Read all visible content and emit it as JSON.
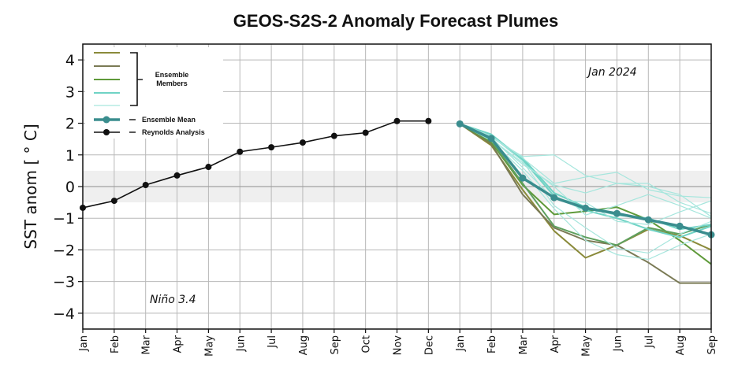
{
  "chart_data": {
    "type": "line",
    "title": "GEOS-S2S-2 Anomaly Forecast Plumes",
    "ylabel": "SST anom [ ° C]",
    "xlabel": "",
    "ylim": [
      -4.5,
      4.5
    ],
    "yticks": [
      "4",
      "3",
      "2",
      "1",
      "0",
      "−1",
      "−2",
      "−3",
      "−4"
    ],
    "ytick_values": [
      4,
      3,
      2,
      1,
      0,
      -1,
      -2,
      -3,
      -4
    ],
    "x_labels": [
      "Jan",
      "Feb",
      "Mar",
      "Apr",
      "May",
      "Jun",
      "Jul",
      "Aug",
      "Sep",
      "Oct",
      "Nov",
      "Dec",
      "Jan",
      "Feb",
      "Mar",
      "Apr",
      "May",
      "Jun",
      "Jul",
      "Aug",
      "Sep"
    ],
    "grid": true,
    "neutral_band": [
      -0.5,
      0.5
    ],
    "annotations": {
      "date": "Jan 2024",
      "region": "Niño 3.4"
    },
    "legend": {
      "position": "top-left",
      "members_label_line1": "Ensemble",
      "members_label_line2": "Members",
      "mean_label": "Ensemble Mean",
      "analysis_label": "Reynolds Analysis"
    },
    "reynolds_analysis": {
      "x_index": [
        0,
        1,
        2,
        3,
        4,
        5,
        6,
        7,
        8,
        9,
        10,
        11
      ],
      "values": [
        -0.67,
        -0.45,
        0.05,
        0.35,
        0.62,
        1.1,
        1.24,
        1.39,
        1.6,
        1.7,
        2.07,
        2.07
      ],
      "color": "#111111"
    },
    "ensemble_mean": {
      "x_index": [
        12,
        13,
        14,
        15,
        16,
        17,
        18,
        19,
        20
      ],
      "values": [
        1.98,
        1.52,
        0.27,
        -0.35,
        -0.68,
        -0.85,
        -1.05,
        -1.25,
        -1.52
      ],
      "color": "#3a8d8e"
    },
    "ensemble_members": [
      {
        "color": "#8a8a3a",
        "width": 2,
        "values": [
          1.98,
          1.3,
          -0.1,
          -1.4,
          -2.25,
          -1.85,
          -1.35,
          -1.55,
          -2.0
        ]
      },
      {
        "color": "#7a7a55",
        "width": 2,
        "values": [
          1.98,
          1.35,
          -0.25,
          -1.3,
          -1.7,
          -1.85,
          -2.4,
          -3.05,
          -3.05
        ]
      },
      {
        "color": "#5f9a3a",
        "width": 2,
        "values": [
          1.98,
          1.4,
          0.05,
          -0.88,
          -0.78,
          -0.65,
          -1.05,
          -1.7,
          -2.45
        ]
      },
      {
        "color": "#5fa05f",
        "width": 2,
        "values": [
          1.98,
          1.45,
          0.1,
          -1.25,
          -1.6,
          -1.85,
          -1.3,
          -1.5,
          -1.2
        ]
      },
      {
        "color": "#6fd3c5",
        "width": 2,
        "values": [
          1.98,
          1.6,
          0.9,
          -0.2,
          -0.65,
          -0.9,
          -1.0,
          -1.35,
          -1.2
        ]
      },
      {
        "color": "#6fd3c5",
        "width": 2,
        "values": [
          1.98,
          1.65,
          0.85,
          -0.3,
          -0.75,
          -1.0,
          -1.35,
          -1.6,
          -1.25
        ]
      },
      {
        "color": "#a6e6dd",
        "width": 1.2,
        "values": [
          1.98,
          1.55,
          0.95,
          1.0,
          0.35,
          0.1,
          0.0,
          -0.25,
          -0.95
        ]
      },
      {
        "color": "#a6e6dd",
        "width": 1.2,
        "values": [
          1.98,
          1.6,
          0.9,
          0.1,
          0.3,
          0.45,
          -0.1,
          -0.3,
          -0.35
        ]
      },
      {
        "color": "#a6e6dd",
        "width": 1.2,
        "values": [
          1.98,
          1.5,
          0.7,
          0.05,
          -0.2,
          0.1,
          0.1,
          -0.5,
          -0.85
        ]
      },
      {
        "color": "#a6e6dd",
        "width": 1.2,
        "values": [
          1.98,
          1.55,
          0.6,
          -0.4,
          -0.5,
          -1.1,
          -1.2,
          -0.8,
          -0.45
        ]
      },
      {
        "color": "#a6e6dd",
        "width": 1.2,
        "values": [
          1.98,
          1.6,
          0.8,
          -0.6,
          -1.3,
          -1.95,
          -2.1,
          -1.5,
          -1.1
        ]
      },
      {
        "color": "#a6e6dd",
        "width": 1.2,
        "values": [
          1.98,
          1.45,
          0.5,
          -0.7,
          -1.7,
          -2.15,
          -2.3,
          -1.85,
          -1.5
        ]
      },
      {
        "color": "#a6e6dd",
        "width": 1.2,
        "values": [
          1.98,
          1.5,
          0.75,
          0.0,
          -0.9,
          -0.6,
          -0.25,
          -0.6,
          -1.0
        ]
      }
    ]
  }
}
